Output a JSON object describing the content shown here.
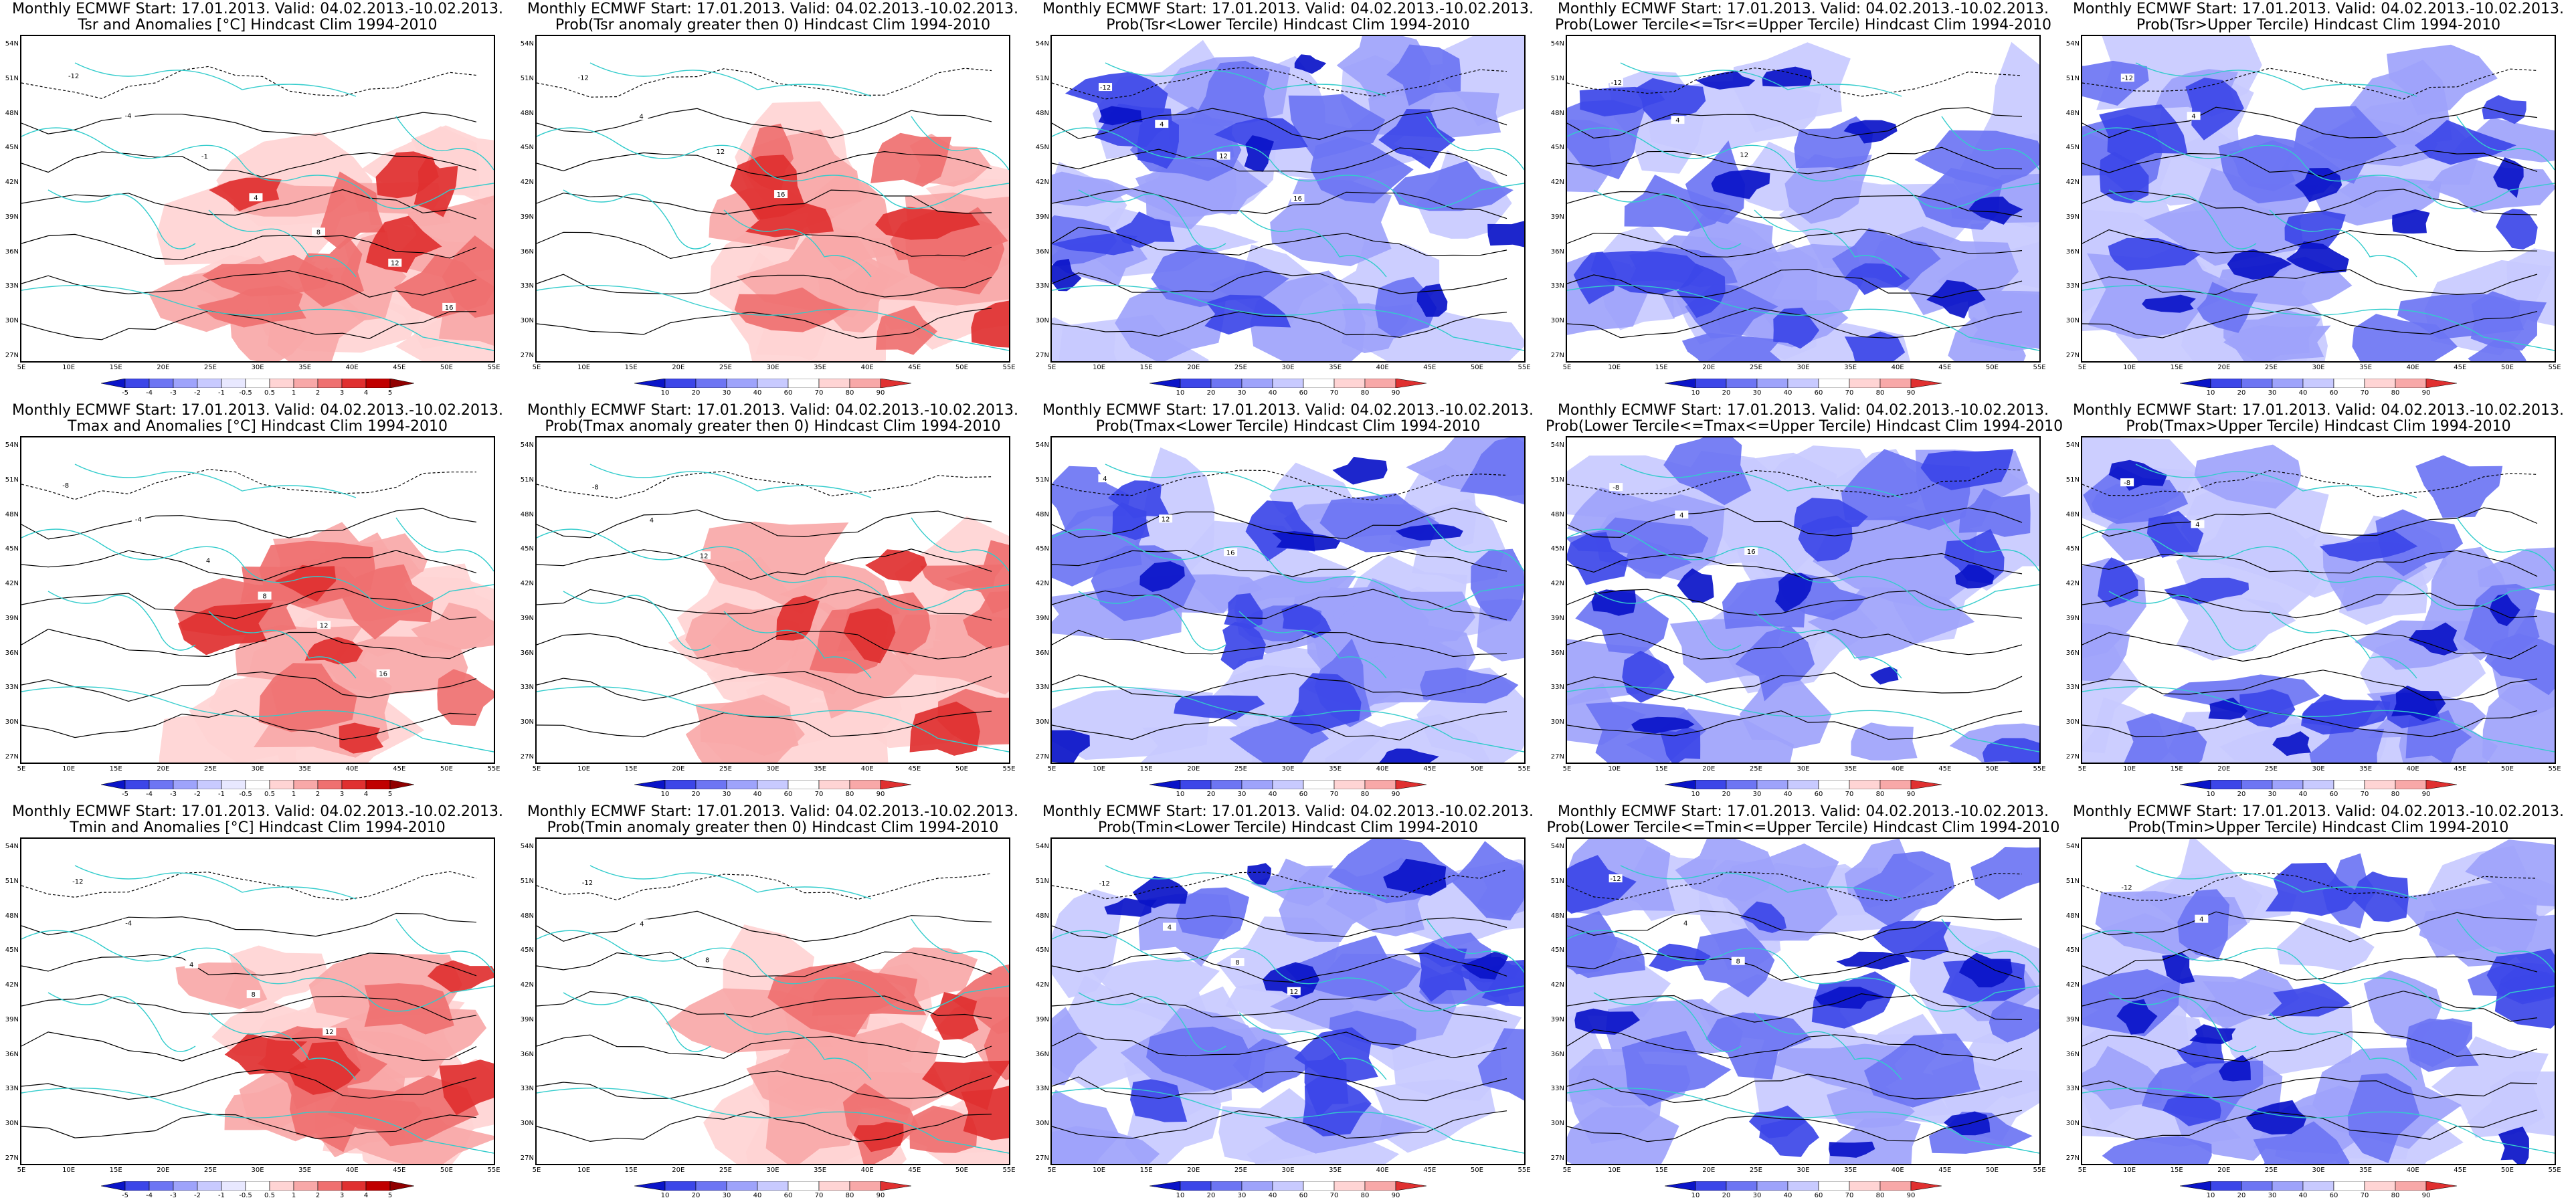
{
  "colors": {
    "red": [
      "#ffffff",
      "#ffd4d4",
      "#f8a8a8",
      "#ef7070",
      "#e03030",
      "#c00000"
    ],
    "blue": [
      "#ffffff",
      "#c8caff",
      "#9ea3fb",
      "#6d75f3",
      "#3c46e8",
      "#0a14c8"
    ],
    "land_line": "#33cccc",
    "contour": "#000000"
  },
  "y_labels": [
    "54N",
    "51N",
    "48N",
    "45N",
    "42N",
    "39N",
    "36N",
    "33N",
    "30N",
    "27N"
  ],
  "x_labels": [
    "5E",
    "10E",
    "15E",
    "20E",
    "25E",
    "30E",
    "35E",
    "40E",
    "45E",
    "50E",
    "55E"
  ],
  "colorbars": {
    "anom_tsr": [
      "-5",
      "-4",
      "-3",
      "-2",
      "-1",
      "-0.5",
      "0.5",
      "1",
      "2",
      "3",
      "4",
      "5"
    ],
    "anom": [
      "-5",
      "-4",
      "-3",
      "-2",
      "-1",
      "-0.5",
      "0.5",
      "1",
      "2",
      "3",
      "4",
      "5"
    ],
    "prob_a": [
      "10",
      "20",
      "30",
      "40",
      "60",
      "70",
      "80",
      "90"
    ],
    "prob_b": [
      "10",
      "20",
      "30",
      "40",
      "60",
      "70",
      "80",
      "90"
    ],
    "prob_c": [
      "10",
      "20",
      "30",
      "40",
      "60",
      "70",
      "80",
      "90"
    ]
  },
  "panels": [
    {
      "id": "tsr-anom",
      "line1": "Monthly ECMWF Start: 17.01.2013. Valid: 04.02.2013.-10.02.2013.",
      "line2": "Tsr and Anomalies [°C] Hindcast Clim 1994-2010",
      "palette": "red",
      "colorbar": "anom_tsr",
      "contours": [
        "-12",
        "-4",
        "-1",
        "4",
        "8",
        "12",
        "16"
      ]
    },
    {
      "id": "tsr-prob-gt0",
      "line1": "Monthly ECMWF Start: 17.01.2013. Valid: 04.02.2013.-10.02.2013.",
      "line2": "Prob(Tsr anomaly greater then 0) Hindcast Clim 1994-2010",
      "palette": "red",
      "colorbar": "prob_a",
      "contours": [
        "-12",
        "4",
        "12",
        "16"
      ]
    },
    {
      "id": "tsr-prob-lower",
      "line1": "Monthly ECMWF Start: 17.01.2013. Valid: 04.02.2013.-10.02.2013.",
      "line2": "Prob(Tsr<Lower Tercile) Hindcast Clim 1994-2010",
      "palette": "blue",
      "colorbar": "prob_b",
      "contours": [
        "-12",
        "4",
        "12",
        "16"
      ]
    },
    {
      "id": "tsr-prob-middle",
      "line1": "Monthly ECMWF Start: 17.01.2013. Valid: 04.02.2013.-10.02.2013.",
      "line2": "Prob(Lower Tercile<=Tsr<=Upper Tercile) Hindcast Clim 1994-2010",
      "palette": "blue",
      "colorbar": "prob_c",
      "contours": [
        "-12",
        "4",
        "12"
      ]
    },
    {
      "id": "tsr-prob-upper",
      "line1": "Monthly ECMWF Start: 17.01.2013. Valid: 04.02.2013.-10.02.2013.",
      "line2": "Prob(Tsr>Upper Tercile) Hindcast Clim 1994-2010",
      "palette": "blue",
      "colorbar": "prob_a",
      "contours": [
        "-12",
        "4"
      ]
    },
    {
      "id": "tmax-anom",
      "line1": "Monthly ECMWF Start: 17.01.2013. Valid: 04.02.2013.-10.02.2013.",
      "line2": "Tmax and Anomalies [°C] Hindcast Clim 1994-2010",
      "palette": "red",
      "colorbar": "anom",
      "contours": [
        "-8",
        "-4",
        "4",
        "8",
        "12",
        "16"
      ]
    },
    {
      "id": "tmax-prob-gt0",
      "line1": "Monthly ECMWF Start: 17.01.2013. Valid: 04.02.2013.-10.02.2013.",
      "line2": "Prob(Tmax anomaly greater then 0) Hindcast Clim 1994-2010",
      "palette": "red",
      "colorbar": "prob_a",
      "contours": [
        "-8",
        "4",
        "12"
      ]
    },
    {
      "id": "tmax-prob-lower",
      "line1": "Monthly ECMWF Start: 17.01.2013. Valid: 04.02.2013.-10.02.2013.",
      "line2": "Prob(Tmax<Lower Tercile) Hindcast Clim 1994-2010",
      "palette": "blue",
      "colorbar": "prob_b",
      "contours": [
        "4",
        "12",
        "16"
      ]
    },
    {
      "id": "tmax-prob-middle",
      "line1": "Monthly ECMWF Start: 17.01.2013. Valid: 04.02.2013.-10.02.2013.",
      "line2": "Prob(Lower Tercile<=Tmax<=Upper Tercile) Hindcast Clim 1994-2010",
      "palette": "blue",
      "colorbar": "prob_c",
      "contours": [
        "-8",
        "4",
        "16"
      ]
    },
    {
      "id": "tmax-prob-upper",
      "line1": "Monthly ECMWF Start: 17.01.2013. Valid: 04.02.2013.-10.02.2013.",
      "line2": "Prob(Tmax>Upper Tercile) Hindcast Clim 1994-2010",
      "palette": "blue",
      "colorbar": "prob_a",
      "contours": [
        "-8",
        "4"
      ]
    },
    {
      "id": "tmin-anom",
      "line1": "Monthly ECMWF Start: 17.01.2013. Valid: 04.02.2013.-10.02.2013.",
      "line2": "Tmin and Anomalies [°C] Hindcast Clim 1994-2010",
      "palette": "red",
      "colorbar": "anom",
      "contours": [
        "-12",
        "-4",
        "4",
        "8",
        "12"
      ]
    },
    {
      "id": "tmin-prob-gt0",
      "line1": "Monthly ECMWF Start: 17.01.2013. Valid: 04.02.2013.-10.02.2013.",
      "line2": "Prob(Tmin anomaly greater then 0) Hindcast Clim 1994-2010",
      "palette": "red",
      "colorbar": "prob_a",
      "contours": [
        "-12",
        "4",
        "8"
      ]
    },
    {
      "id": "tmin-prob-lower",
      "line1": "Monthly ECMWF Start: 17.01.2013. Valid: 04.02.2013.-10.02.2013.",
      "line2": "Prob(Tmin<Lower Tercile) Hindcast Clim 1994-2010",
      "palette": "blue",
      "colorbar": "prob_b",
      "contours": [
        "-12",
        "4",
        "8",
        "12"
      ]
    },
    {
      "id": "tmin-prob-middle",
      "line1": "Monthly ECMWF Start: 17.01.2013. Valid: 04.02.2013.-10.02.2013.",
      "line2": "Prob(Lower Tercile<=Tmin<=Upper Tercile) Hindcast Clim 1994-2010",
      "palette": "blue",
      "colorbar": "prob_c",
      "contours": [
        "-12",
        "4",
        "8"
      ]
    },
    {
      "id": "tmin-prob-upper",
      "line1": "Monthly ECMWF Start: 17.01.2013. Valid: 04.02.2013.-10.02.2013.",
      "line2": "Prob(Tmin>Upper Tercile) Hindcast Clim 1994-2010",
      "palette": "blue",
      "colorbar": "prob_a",
      "contours": [
        "-12",
        "4"
      ]
    }
  ]
}
